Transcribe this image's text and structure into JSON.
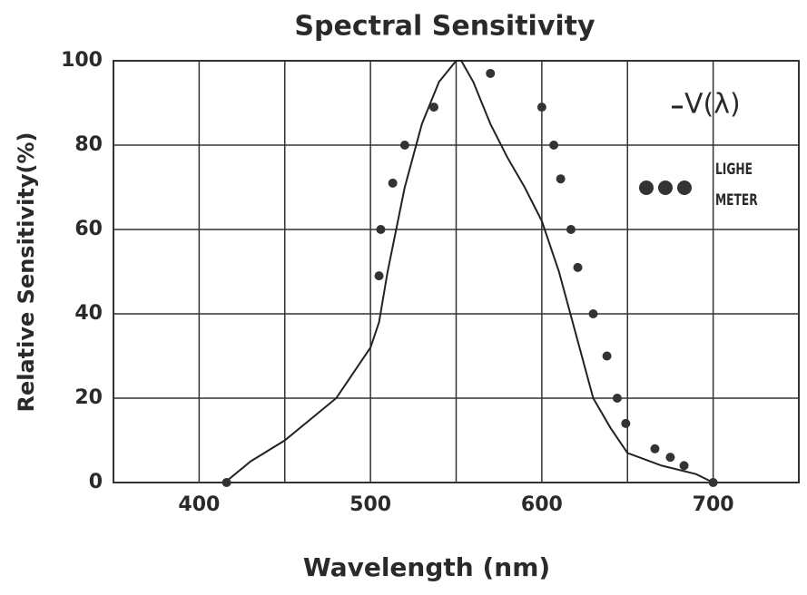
{
  "chart_data": {
    "type": "line",
    "title": "Spectral Sensitivity",
    "xlabel": "Wavelength  (nm)",
    "ylabel": "Relative Sensitivity(%)",
    "xlim": [
      350,
      750
    ],
    "xticks": [
      400,
      500,
      600,
      700
    ],
    "xgrid": [
      450,
      550,
      650
    ],
    "ylim": [
      0,
      100
    ],
    "yticks": [
      0,
      20,
      40,
      60,
      80,
      100
    ],
    "grid": true,
    "legend": "upper right",
    "series": [
      {
        "name": "V(λ)",
        "style": "line",
        "color": "#222222",
        "x": [
          415,
          430,
          450,
          480,
          500,
          505,
          510,
          520,
          530,
          540,
          550,
          553,
          560,
          570,
          580,
          590,
          600,
          610,
          620,
          630,
          640,
          650,
          670,
          690,
          700
        ],
        "values": [
          0,
          5,
          10,
          20,
          32,
          38,
          50,
          70,
          85,
          95,
          100,
          100,
          95,
          85,
          77,
          70,
          62,
          50,
          35,
          20,
          13,
          7,
          4,
          2,
          0
        ]
      },
      {
        "name": "LIGHE METER",
        "style": "dots",
        "color": "#333333",
        "x": [
          416,
          505,
          506,
          513,
          520,
          537,
          570,
          600,
          607,
          611,
          617,
          621,
          630,
          638,
          644,
          649,
          666,
          675,
          683,
          700
        ],
        "values": [
          0,
          49,
          60,
          71,
          80,
          89,
          97,
          89,
          80,
          72,
          60,
          51,
          40,
          30,
          20,
          14,
          8,
          6,
          4,
          0
        ]
      }
    ]
  }
}
